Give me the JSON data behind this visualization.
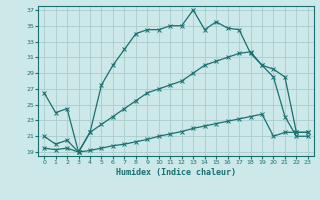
{
  "xlabel": "Humidex (Indice chaleur)",
  "background_color": "#cce8e8",
  "line_color": "#1a7070",
  "grid_color": "#aacccc",
  "xlim": [
    -0.5,
    23.5
  ],
  "ylim": [
    18.5,
    37.5
  ],
  "xticks": [
    0,
    1,
    2,
    3,
    4,
    5,
    6,
    7,
    8,
    9,
    10,
    11,
    12,
    13,
    14,
    15,
    16,
    17,
    18,
    19,
    20,
    21,
    22,
    23
  ],
  "yticks": [
    19,
    21,
    23,
    25,
    27,
    29,
    31,
    33,
    35,
    37
  ],
  "line1_x": [
    0,
    1,
    2,
    3,
    4,
    5,
    6,
    7,
    8,
    9,
    10,
    11,
    12,
    13,
    14,
    15,
    16,
    17,
    18,
    19,
    20,
    21,
    22,
    23
  ],
  "line1_y": [
    26.5,
    24.0,
    24.5,
    19.0,
    21.5,
    27.5,
    30.0,
    32.0,
    34.0,
    34.5,
    34.5,
    35.0,
    35.0,
    37.0,
    34.5,
    35.5,
    34.7,
    34.5,
    31.5,
    30.0,
    28.5,
    23.5,
    21.0,
    21.0
  ],
  "line2_x": [
    0,
    1,
    2,
    3,
    4,
    5,
    6,
    7,
    8,
    9,
    10,
    11,
    12,
    13,
    14,
    15,
    16,
    17,
    18,
    19,
    20,
    21,
    22,
    23
  ],
  "line2_y": [
    21.0,
    20.0,
    20.5,
    19.0,
    21.5,
    22.5,
    23.5,
    24.5,
    25.5,
    26.5,
    27.0,
    27.5,
    28.0,
    29.0,
    30.0,
    30.5,
    31.0,
    31.5,
    31.7,
    30.0,
    29.5,
    28.5,
    21.5,
    21.5
  ],
  "line3_x": [
    0,
    1,
    2,
    3,
    4,
    5,
    6,
    7,
    8,
    9,
    10,
    11,
    12,
    13,
    14,
    15,
    16,
    17,
    18,
    19,
    20,
    21,
    22,
    23
  ],
  "line3_y": [
    19.5,
    19.3,
    19.5,
    19.0,
    19.2,
    19.5,
    19.8,
    20.0,
    20.3,
    20.6,
    21.0,
    21.3,
    21.6,
    22.0,
    22.3,
    22.6,
    22.9,
    23.2,
    23.5,
    23.8,
    21.0,
    21.5,
    21.5,
    21.5
  ]
}
